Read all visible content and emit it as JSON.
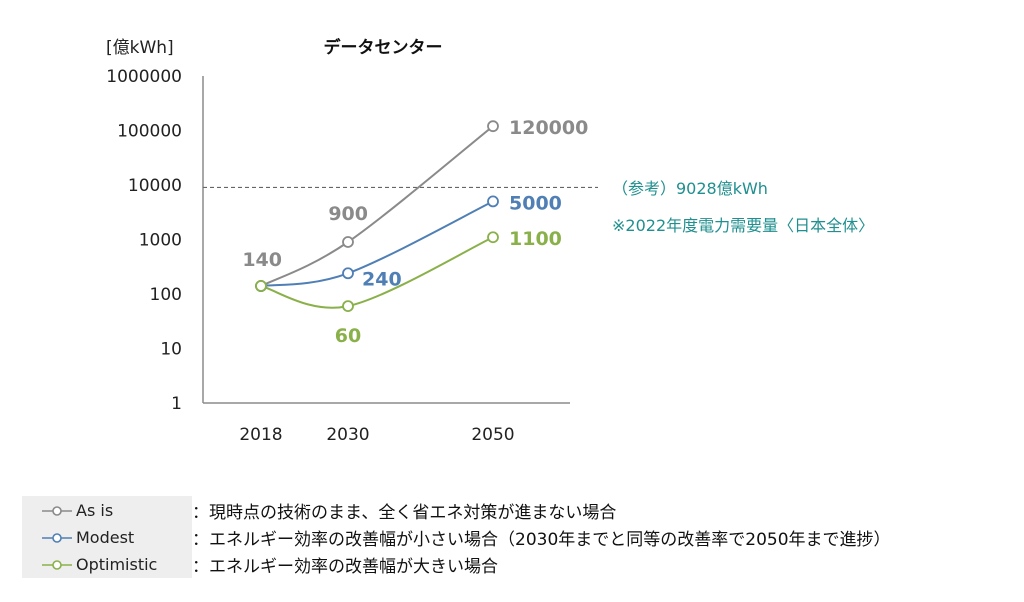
{
  "chart_data": {
    "type": "line",
    "title": "データセンター",
    "ylabel": "[億kWh]",
    "yscale": "log",
    "ylim": [
      1,
      1000000
    ],
    "yticks": [
      "1",
      "10",
      "100",
      "1000",
      "10000",
      "100000",
      "1000000"
    ],
    "categories": [
      "2018",
      "2030",
      "2050"
    ],
    "x": [
      2018,
      2030,
      2050
    ],
    "series": [
      {
        "name": "As is",
        "color": "#8a8a8a",
        "values": [
          140,
          900,
          120000
        ],
        "labels": [
          "140",
          "900",
          "120000"
        ]
      },
      {
        "name": "Modest",
        "color": "#4f7fb4",
        "values": [
          140,
          240,
          5000
        ],
        "labels": [
          "",
          "240",
          "5000"
        ]
      },
      {
        "name": "Optimistic",
        "color": "#8ab04a",
        "values": [
          140,
          60,
          1100
        ],
        "labels": [
          "",
          "60",
          "1100"
        ]
      }
    ],
    "reference": {
      "value": 9028,
      "label": "（参考）9028億kWh",
      "note": "※2022年度電力需要量〈日本全体〉",
      "color": "#1f8f8f"
    },
    "grid": false
  },
  "legend": {
    "items": [
      {
        "name": "As is",
        "description": "：現時点の技術のまま、全く省エネ対策が進まない場合"
      },
      {
        "name": "Modest",
        "description": "：エネルギー効率の改善幅が小さい場合（2030年までと同等の改善率で2050年まで進捗）"
      },
      {
        "name": "Optimistic",
        "description": "：エネルギー効率の改善幅が大きい場合"
      }
    ]
  }
}
